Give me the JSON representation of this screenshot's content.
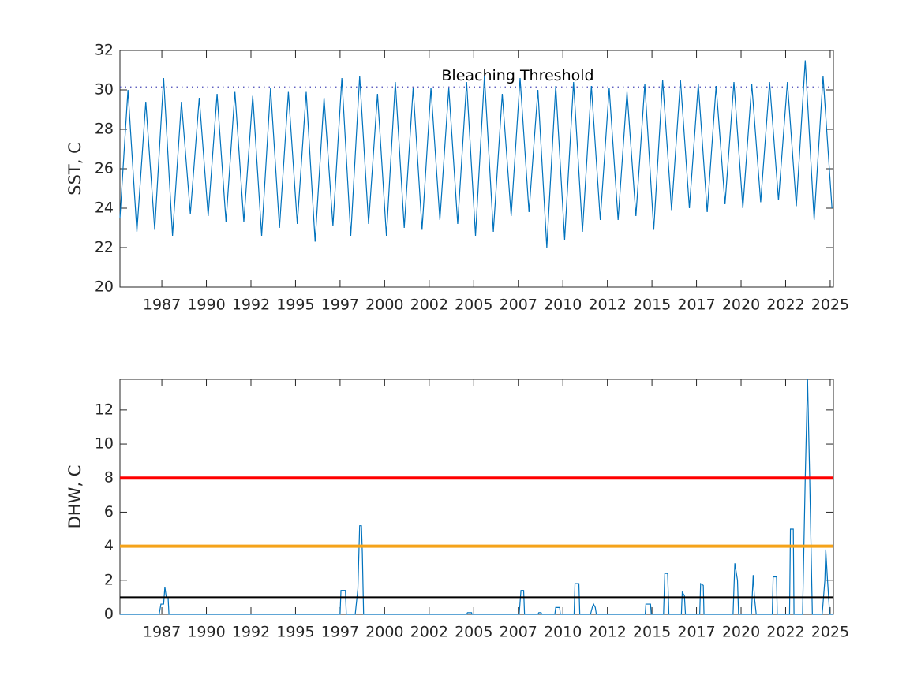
{
  "chart_data": [
    {
      "type": "line",
      "ylabel": "SST, C",
      "x": [
        1985.15,
        1985.6,
        1986.1,
        1986.6,
        1987.1,
        1987.6,
        1988.1,
        1988.6,
        1989.1,
        1989.6,
        1990.1,
        1990.6,
        1991.1,
        1991.6,
        1992.1,
        1992.6,
        1993.1,
        1993.6,
        1994.1,
        1994.6,
        1995.1,
        1995.6,
        1996.1,
        1996.6,
        1997.1,
        1997.6,
        1998.1,
        1998.6,
        1999.1,
        1999.6,
        2000.1,
        2000.6,
        2001.1,
        2001.6,
        2002.1,
        2002.6,
        2003.1,
        2003.6,
        2004.1,
        2004.6,
        2005.1,
        2005.6,
        2006.1,
        2006.6,
        2007.1,
        2007.6,
        2008.1,
        2008.6,
        2009.1,
        2009.6,
        2010.1,
        2010.6,
        2011.1,
        2011.6,
        2012.1,
        2012.6,
        2013.1,
        2013.6,
        2014.1,
        2014.6,
        2015.1,
        2015.6,
        2016.1,
        2016.6,
        2017.1,
        2017.6,
        2018.1,
        2018.6,
        2019.1,
        2019.6,
        2020.1,
        2020.6,
        2021.1,
        2021.6,
        2022.1,
        2022.6,
        2023.1,
        2023.6,
        2024.1,
        2024.6,
        2025.1
      ],
      "series": [
        {
          "color": "#0072bd",
          "values": [
            23.5,
            30.0,
            22.8,
            29.4,
            22.9,
            30.6,
            22.6,
            29.4,
            23.7,
            29.6,
            23.6,
            29.8,
            23.3,
            29.9,
            23.3,
            29.7,
            22.6,
            30.1,
            23.0,
            29.9,
            23.2,
            29.9,
            22.3,
            29.6,
            23.1,
            30.6,
            22.6,
            30.7,
            23.2,
            29.8,
            22.6,
            30.4,
            23.0,
            30.1,
            22.9,
            30.1,
            23.4,
            30.1,
            23.2,
            30.4,
            22.6,
            30.7,
            22.8,
            29.8,
            23.6,
            30.6,
            23.8,
            30.0,
            22.0,
            30.2,
            22.4,
            30.4,
            22.8,
            30.2,
            23.4,
            30.1,
            23.4,
            29.9,
            23.6,
            30.3,
            22.9,
            30.5,
            23.9,
            30.5,
            24.0,
            30.3,
            23.8,
            30.2,
            24.2,
            30.4,
            24.0,
            30.3,
            24.3,
            30.4,
            24.4,
            30.4,
            24.1,
            31.5,
            23.4,
            30.7,
            24.0
          ]
        }
      ],
      "threshold": {
        "value": 30.15,
        "label": "Bleaching Threshold",
        "color": "#4a4ab8"
      },
      "xlim": [
        1985.15,
        2025.18
      ],
      "xticks": [
        {
          "value": 1987.5,
          "label": "1987"
        },
        1990,
        {
          "value": 1992.5,
          "label": "1992"
        },
        1995,
        {
          "value": 1997.5,
          "label": "1997"
        },
        2000,
        {
          "value": 2002.5,
          "label": "2002"
        },
        2005,
        {
          "value": 2007.5,
          "label": "2007"
        },
        2010,
        {
          "value": 2012.5,
          "label": "2012"
        },
        2015,
        {
          "value": 2017.5,
          "label": "2017"
        },
        2020,
        {
          "value": 2022.5,
          "label": "2022"
        },
        2025
      ],
      "ylim": [
        20,
        32
      ],
      "yticks": [
        20,
        22,
        24,
        26,
        28,
        30,
        32
      ],
      "grid": false
    },
    {
      "type": "line",
      "ylabel": "DHW, C",
      "x": [
        1985.15,
        1987.35,
        1987.45,
        1987.6,
        1987.67,
        1987.75,
        1987.85,
        1987.9,
        1997.5,
        1997.55,
        1997.8,
        1997.85,
        1998.35,
        1998.5,
        1998.6,
        1998.7,
        1998.75,
        1998.82,
        2004.6,
        2004.65,
        2004.88,
        2004.9,
        2007.55,
        2007.62,
        2007.65,
        2007.8,
        2007.85,
        2008.6,
        2008.65,
        2008.78,
        2008.82,
        2009.55,
        2009.6,
        2009.82,
        2009.86,
        2010.63,
        2010.68,
        2010.9,
        2010.95,
        2011.55,
        2011.65,
        2011.72,
        2011.82,
        2011.88,
        2014.62,
        2014.66,
        2014.92,
        2014.96,
        2015.65,
        2015.72,
        2015.88,
        2015.95,
        2016.65,
        2016.7,
        2016.82,
        2016.88,
        2017.68,
        2017.73,
        2017.88,
        2017.92,
        2019.55,
        2019.65,
        2019.8,
        2019.86,
        2020.58,
        2020.68,
        2020.75,
        2020.85,
        2021.75,
        2021.8,
        2021.99,
        2022.03,
        2022.72,
        2022.77,
        2022.93,
        2022.97,
        2023.45,
        2023.6,
        2023.73,
        2023.85,
        2024.0,
        2024.55,
        2024.7,
        2024.75,
        2024.85,
        2024.97,
        2025.15
      ],
      "series": [
        {
          "color": "#0072bd",
          "values": [
            0,
            0,
            0.6,
            0.6,
            1.6,
            1.0,
            1.0,
            0,
            0,
            1.4,
            1.4,
            0,
            0,
            1.5,
            5.2,
            5.2,
            3.6,
            0,
            0,
            0.1,
            0.1,
            0,
            0,
            1.0,
            1.4,
            1.4,
            0,
            0,
            0.1,
            0.1,
            0,
            0,
            0.4,
            0.4,
            0,
            0,
            1.8,
            1.8,
            0,
            0,
            0.4,
            0.6,
            0.4,
            0,
            0,
            0.6,
            0.6,
            0,
            0,
            2.4,
            2.4,
            0,
            0,
            1.3,
            1.1,
            0,
            0,
            1.8,
            1.7,
            0,
            0,
            3.0,
            2.0,
            0,
            0,
            2.3,
            1.0,
            0,
            0,
            2.2,
            2.2,
            0,
            0,
            5.0,
            5.0,
            0,
            0,
            8.0,
            13.8,
            8.0,
            0,
            0,
            2.0,
            3.8,
            2.0,
            0,
            0
          ]
        }
      ],
      "hlines": [
        {
          "value": 8,
          "color": "#ff0000"
        },
        {
          "value": 4,
          "color": "#f5a31a"
        },
        {
          "value": 1,
          "color": "#000000"
        }
      ],
      "xlim": [
        1985.15,
        2025.18
      ],
      "xticks": [
        {
          "value": 1987.5,
          "label": "1987"
        },
        1990,
        {
          "value": 1992.5,
          "label": "1992"
        },
        1995,
        {
          "value": 1997.5,
          "label": "1997"
        },
        2000,
        {
          "value": 2002.5,
          "label": "2002"
        },
        2005,
        {
          "value": 2007.5,
          "label": "2007"
        },
        2010,
        {
          "value": 2012.5,
          "label": "2012"
        },
        2015,
        {
          "value": 2017.5,
          "label": "2017"
        },
        2020,
        {
          "value": 2022.5,
          "label": "2022"
        },
        2025
      ],
      "ylim": [
        0,
        13.8
      ],
      "yticks": [
        0,
        2,
        4,
        6,
        8,
        10,
        12
      ],
      "grid": false
    }
  ]
}
